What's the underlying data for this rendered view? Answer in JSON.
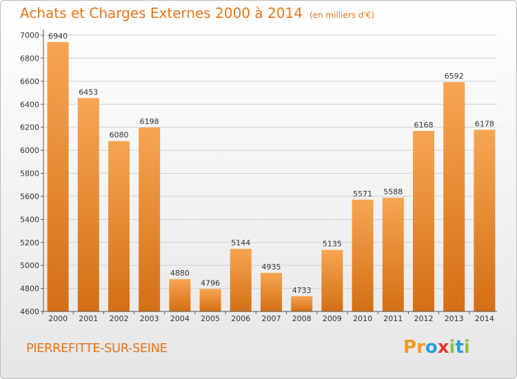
{
  "title": "Achats et Charges Externes 2000 à 2014",
  "subtitle": "(en milliers d'€)",
  "city": "PIERREFITTE-SUR-SEINE",
  "logo": {
    "letters": [
      "P",
      "r",
      "o",
      "x",
      "i",
      "t",
      "i"
    ],
    "colors": [
      "#f39a1e",
      "#f39a1e",
      "#2a9fd8",
      "#e53935",
      "#8bc34a",
      "#2a9fd8",
      "#8bc34a"
    ]
  },
  "colors": {
    "bar_top": "#f7a552",
    "bar_bottom": "#d46f14",
    "title": "#e8751a",
    "grid": "#d0d0d0"
  },
  "chart_data": {
    "type": "bar",
    "categories": [
      "2000",
      "2001",
      "2002",
      "2003",
      "2004",
      "2005",
      "2006",
      "2007",
      "2008",
      "2009",
      "2010",
      "2011",
      "2012",
      "2013",
      "2014"
    ],
    "values": [
      6940,
      6453,
      6080,
      6198,
      4880,
      4796,
      5144,
      4935,
      4733,
      5135,
      5571,
      5588,
      6168,
      6592,
      6178
    ],
    "title": "Achats et Charges Externes 2000 à 2014",
    "ylim": [
      4600,
      7000
    ],
    "yticks": [
      4600,
      4800,
      5000,
      5200,
      5400,
      5600,
      5800,
      6000,
      6200,
      6400,
      6600,
      6800,
      7000
    ],
    "grid": true,
    "legend": "none"
  }
}
